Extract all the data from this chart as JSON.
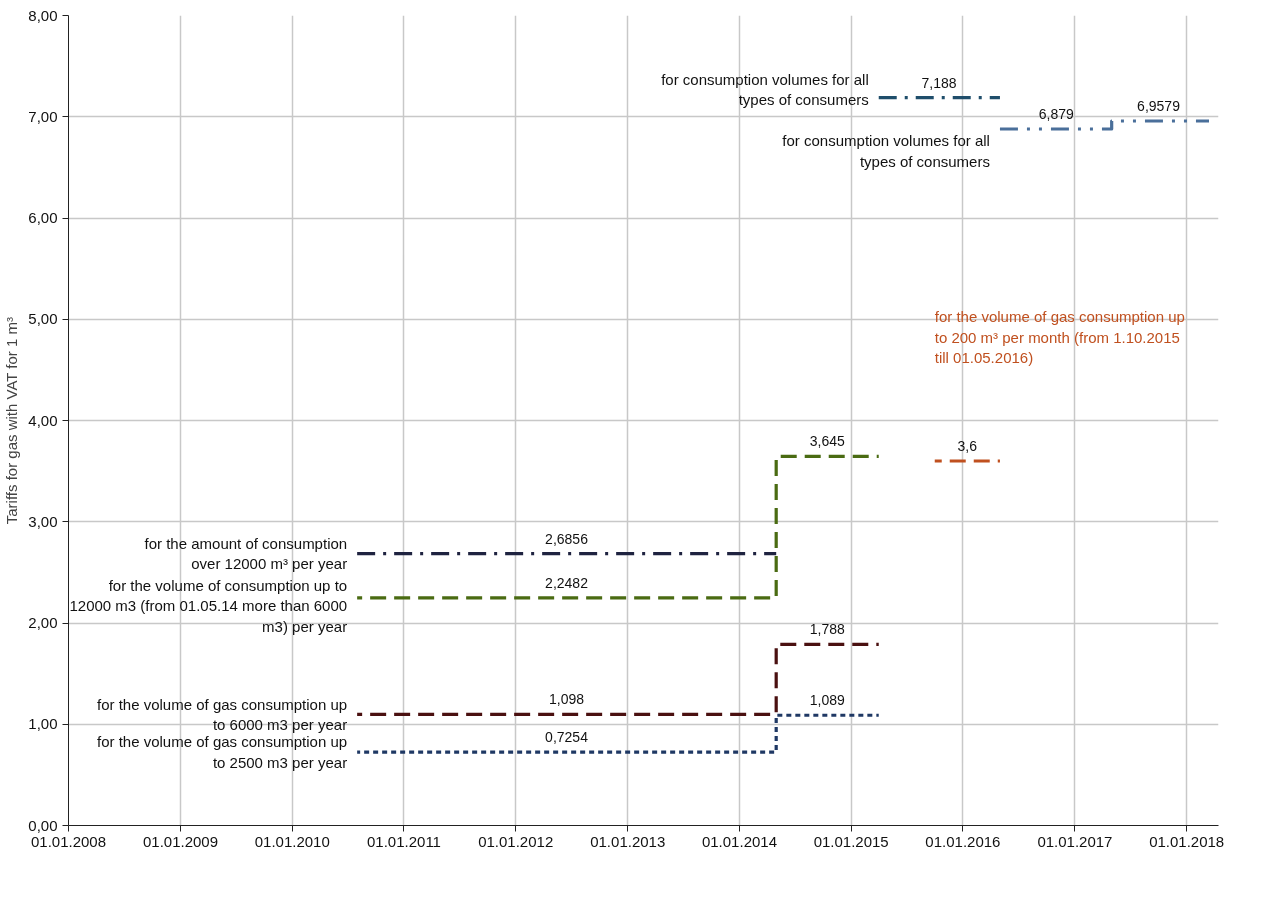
{
  "chart_data": {
    "type": "step",
    "ylabel": "Tariffs for gas with VAT for 1 m³",
    "xlim": [
      "2008-01-01",
      "2018-04-15"
    ],
    "ylim": [
      0,
      8
    ],
    "xticks": [
      {
        "value": "2008-01-01",
        "label": "01.01.2008"
      },
      {
        "value": "2009-01-01",
        "label": "01.01.2009"
      },
      {
        "value": "2010-01-01",
        "label": "01.01.2010"
      },
      {
        "value": "2011-01-01",
        "label": "01.01.2011"
      },
      {
        "value": "2012-01-01",
        "label": "01.01.2012"
      },
      {
        "value": "2013-01-01",
        "label": "01.01.2013"
      },
      {
        "value": "2014-01-01",
        "label": "01.01.2014"
      },
      {
        "value": "2015-01-01",
        "label": "01.01.2015"
      },
      {
        "value": "2016-01-01",
        "label": "01.01.2016"
      },
      {
        "value": "2017-01-01",
        "label": "01.01.2017"
      },
      {
        "value": "2018-01-01",
        "label": "01.01.2018"
      }
    ],
    "yticks": [
      {
        "value": 0,
        "label": "0,00"
      },
      {
        "value": 1,
        "label": "1,00"
      },
      {
        "value": 2,
        "label": "2,00"
      },
      {
        "value": 3,
        "label": "3,00"
      },
      {
        "value": 4,
        "label": "4,00"
      },
      {
        "value": 5,
        "label": "5,00"
      },
      {
        "value": 6,
        "label": "6,00"
      },
      {
        "value": 7,
        "label": "7,00"
      },
      {
        "value": 8,
        "label": "8,00"
      }
    ],
    "grid": true,
    "annotations": [
      {
        "text": "2,6856",
        "x": "2012-06-15",
        "y": 2.6856
      },
      {
        "text": "2,2482",
        "x": "2012-06-15",
        "y": 2.2482
      },
      {
        "text": "3,645",
        "x": "2014-10-15",
        "y": 3.645
      },
      {
        "text": "1,098",
        "x": "2012-06-15",
        "y": 1.098
      },
      {
        "text": "1,788",
        "x": "2014-10-15",
        "y": 1.788
      },
      {
        "text": "0,7254",
        "x": "2012-06-15",
        "y": 0.7254
      },
      {
        "text": "1,089",
        "x": "2014-10-15",
        "y": 1.089
      },
      {
        "text": "3,6",
        "x": "2016-01-15",
        "y": 3.6
      },
      {
        "text": "7,188",
        "x": "2015-10-15",
        "y": 7.188
      },
      {
        "text": "6,879",
        "x": "2016-11-01",
        "y": 6.879
      },
      {
        "text": "6,9579",
        "x": "2017-10-01",
        "y": 6.9579
      }
    ],
    "series": [
      {
        "name": "for the amount of consumption over 12000 m³ per year",
        "color": "#1f2340",
        "line_style": "dashdot",
        "x": [
          "2010-08-01",
          "2014-05-01"
        ],
        "values": [
          2.6856,
          2.6856
        ]
      },
      {
        "name": "for the volume of consumption up to 12000 m3 (from 01.05.14 more than 6000 m3) per year",
        "color": "#4a6b12",
        "line_style": "dashed",
        "x": [
          "2010-08-01",
          "2014-05-01",
          "2015-04-01"
        ],
        "values": [
          2.2482,
          3.645,
          3.645
        ]
      },
      {
        "name": "for the volume of gas consumption up to 6000 m3 per year",
        "color": "#4a1010",
        "line_style": "dashed",
        "x": [
          "2010-08-01",
          "2014-05-01",
          "2015-04-01"
        ],
        "values": [
          1.098,
          1.788,
          1.788
        ]
      },
      {
        "name": "for the volume of gas consumption up to 2500 m3 per year",
        "color": "#1f3864",
        "line_style": "dotted",
        "x": [
          "2010-08-01",
          "2014-05-01",
          "2015-04-01"
        ],
        "values": [
          0.7254,
          1.089,
          1.089
        ]
      },
      {
        "name": "for the volume of gas consumption up to 200 m³ per month (from 1.10.2015 till 01.05.2016)",
        "color": "#c0501f",
        "line_style": "dashed",
        "x": [
          "2015-10-01",
          "2016-05-01"
        ],
        "values": [
          3.6,
          3.6
        ]
      },
      {
        "name": "for consumption volumes for all types of consumers",
        "color": "#1f4e6b",
        "line_style": "dashdot",
        "x": [
          "2015-04-01",
          "2016-05-01"
        ],
        "values": [
          7.188,
          7.188
        ]
      },
      {
        "name": "for consumption volumes for all types of consumers",
        "color": "#4a6f9a",
        "line_style": "dashdotdot",
        "x": [
          "2016-05-01",
          "2017-05-01",
          "2018-03-15"
        ],
        "values": [
          6.879,
          6.9579,
          6.9579
        ]
      }
    ]
  }
}
